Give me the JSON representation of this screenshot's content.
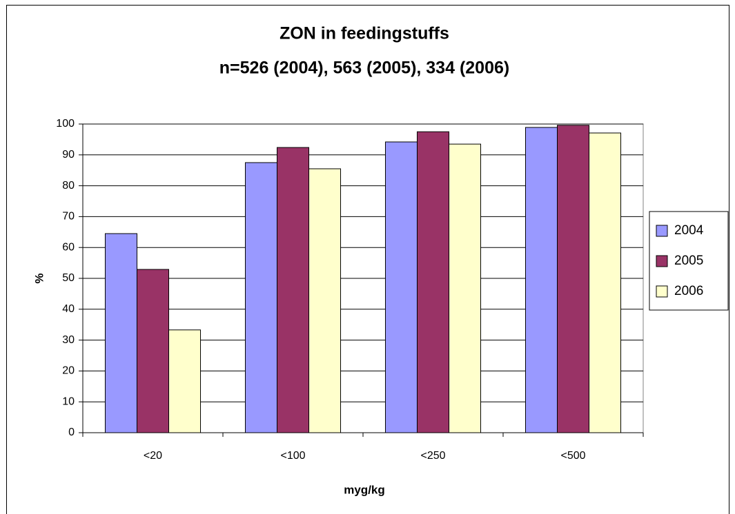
{
  "chart_data": {
    "type": "bar",
    "title": [
      "ZON in feedingstuffs",
      "n=526 (2004), 563 (2005), 334 (2006)"
    ],
    "xlabel": "myg/kg",
    "ylabel": "%",
    "categories": [
      "<20",
      "<100",
      "<250",
      "<500"
    ],
    "series": [
      {
        "name": "2004",
        "color": "#9999ff",
        "values": [
          64.5,
          87.5,
          94.2,
          98.9
        ]
      },
      {
        "name": "2005",
        "color": "#993366",
        "values": [
          52.9,
          92.4,
          97.5,
          99.6
        ]
      },
      {
        "name": "2006",
        "color": "#ffffcc",
        "values": [
          33.3,
          85.5,
          93.5,
          97.1
        ]
      }
    ],
    "ylim": [
      0,
      100
    ],
    "yticks": [
      0,
      10,
      20,
      30,
      40,
      50,
      60,
      70,
      80,
      90,
      100
    ],
    "grid": true,
    "legend": "right"
  }
}
